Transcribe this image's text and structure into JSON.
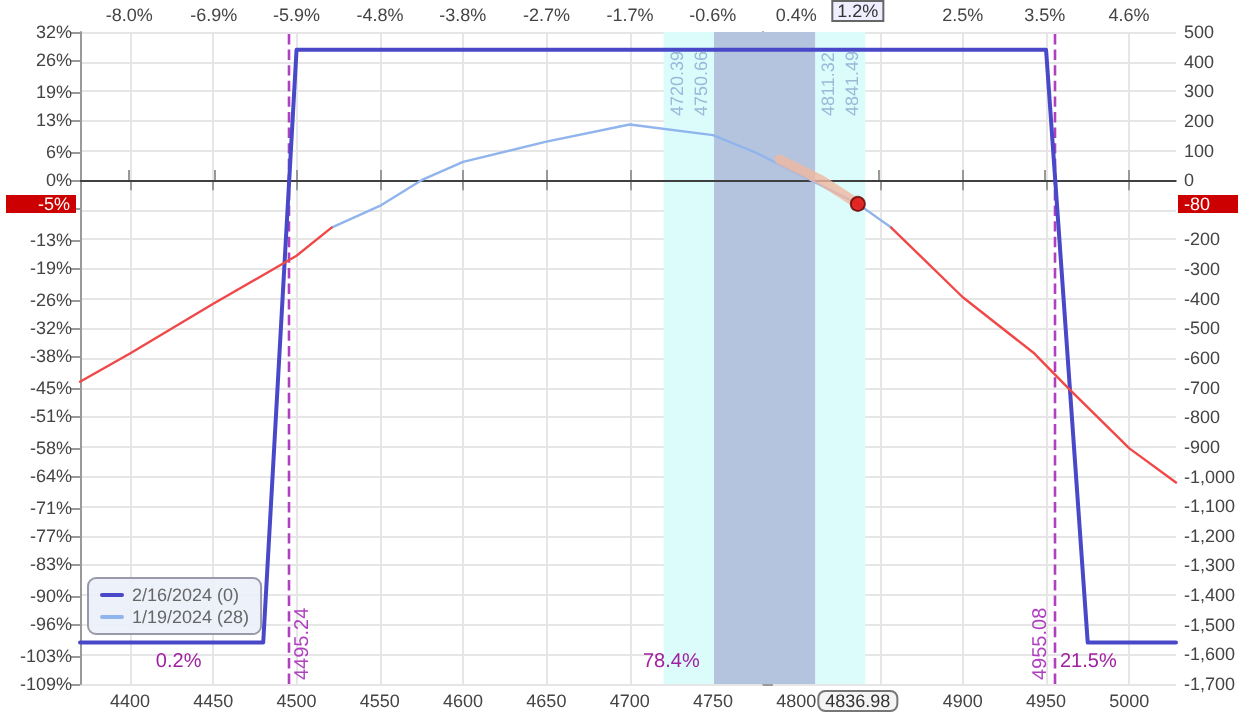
{
  "chart_data": {
    "type": "line",
    "xlim": [
      4370,
      5028
    ],
    "xticks": [
      4400,
      4450,
      4500,
      4550,
      4600,
      4650,
      4700,
      4750,
      4800,
      {
        "value": 4850,
        "label": null
      },
      4900,
      4950,
      5000
    ],
    "x2lim": [
      -8.58,
      5.19
    ],
    "x2ticks": [
      {
        "value": -7.96,
        "label": "-8.0%"
      },
      {
        "value": -6.9,
        "label": "-6.9%"
      },
      {
        "value": -5.86,
        "label": "-5.9%"
      },
      {
        "value": -4.81,
        "label": "-4.8%"
      },
      {
        "value": -3.77,
        "label": "-3.8%"
      },
      {
        "value": -2.72,
        "label": "-2.7%"
      },
      {
        "value": -1.67,
        "label": "-1.7%"
      },
      {
        "value": -0.63,
        "label": "-0.6%"
      },
      {
        "value": 0.42,
        "label": "0.4%"
      },
      {
        "value": 1.46,
        "label": null
      },
      {
        "value": 2.51,
        "label": "2.5%"
      },
      {
        "value": 3.54,
        "label": "3.5%"
      },
      {
        "value": 4.6,
        "label": "4.6%"
      }
    ],
    "ylim": [
      -1700,
      500
    ],
    "yticks": [
      {
        "value": -1700,
        "label": "-1,700"
      },
      {
        "value": -1600,
        "label": "-1,600"
      },
      {
        "value": -1500,
        "label": "-1,500"
      },
      {
        "value": -1400,
        "label": "-1,400"
      },
      {
        "value": -1300,
        "label": "-1,300"
      },
      {
        "value": -1200,
        "label": "-1,200"
      },
      {
        "value": -1100,
        "label": "-1,100"
      },
      {
        "value": -1000,
        "label": "-1,000"
      },
      -900,
      -800,
      -700,
      -600,
      -500,
      -400,
      -300,
      -200,
      {
        "value": -100,
        "label": null
      },
      0,
      100,
      200,
      300,
      400,
      500
    ],
    "y2lim": [
      -109,
      32
    ],
    "y2ticks": [
      {
        "value": 32,
        "label": "32%"
      },
      {
        "value": 26,
        "label": "26%"
      },
      {
        "value": 19,
        "label": "19%"
      },
      {
        "value": 13,
        "label": "13%"
      },
      {
        "value": 6,
        "label": "6%"
      },
      {
        "value": 0,
        "label": "0%"
      },
      {
        "value": -6,
        "label": null
      },
      {
        "value": -13,
        "label": "-13%"
      },
      {
        "value": -19,
        "label": "-19%"
      },
      {
        "value": -26,
        "label": "-26%"
      },
      {
        "value": -32,
        "label": "-32%"
      },
      {
        "value": -38,
        "label": "-38%"
      },
      {
        "value": -45,
        "label": "-45%"
      },
      {
        "value": -51,
        "label": "-51%"
      },
      {
        "value": -58,
        "label": "-58%"
      },
      {
        "value": -64,
        "label": "-64%"
      },
      {
        "value": -71,
        "label": "-71%"
      },
      {
        "value": -77,
        "label": "-77%"
      },
      {
        "value": -83,
        "label": "-83%"
      },
      {
        "value": -90,
        "label": "-90%"
      },
      {
        "value": -96,
        "label": "-96%"
      },
      {
        "value": -103,
        "label": "-103%"
      },
      {
        "value": -109,
        "label": "-109%"
      }
    ],
    "series": [
      {
        "name": "2/16/2024 (0)",
        "color": "#4848c8",
        "x": [
          4370,
          4480,
          4500,
          4950,
          4975,
          5028
        ],
        "values": [
          -1560,
          -1560,
          440,
          440,
          -1560,
          -1560
        ]
      },
      {
        "name": "1/19/2024 (28)",
        "color": "#90b4ec",
        "x": [
          4521,
          4550,
          4575,
          4600,
          4650,
          4700,
          4750,
          4775,
          4800,
          4836.98,
          4857
        ],
        "values": [
          -160,
          -87,
          0,
          62,
          130,
          188,
          152,
          95,
          25,
          -80,
          -160
        ]
      },
      {
        "color": "#f04848",
        "x": [
          4370,
          4400,
          4450,
          4500,
          4521
        ],
        "values": [
          -680,
          -585,
          -417,
          -255,
          -160
        ]
      },
      {
        "color": "#f04848",
        "x": [
          4857,
          4900,
          4943,
          4963,
          5000,
          5028
        ],
        "values": [
          -160,
          -395,
          -585,
          -700,
          -905,
          -1020
        ]
      },
      {
        "color": "#f0b8a0",
        "x": [
          4790,
          4815,
          4836.98
        ],
        "values": [
          70,
          0,
          -80
        ]
      },
      {
        "type": "scatter",
        "marker": "circle",
        "color": "#e00000",
        "x": [
          4836.98
        ],
        "values": [
          -80
        ]
      }
    ],
    "ref_lines": [
      {
        "axis": "x",
        "value": 4495.24,
        "label": "4495.24",
        "color": "#b040c0",
        "line_style": "dashed"
      },
      {
        "axis": "x",
        "value": 4955.08,
        "label": "4955.08",
        "color": "#b040c0",
        "line_style": "dashed"
      },
      {
        "axis": "y",
        "value": 0,
        "color": "#404040",
        "line_style": "solid"
      }
    ],
    "bands": [
      {
        "axis": "x",
        "from": 4720.39,
        "to": 4841.49,
        "color": "#dcfcfc"
      },
      {
        "axis": "x",
        "from": 4750.66,
        "to": 4811.32,
        "color": "#b4c4de"
      }
    ],
    "annotations": [
      {
        "text": "4720.39",
        "x": 4720.39
      },
      {
        "text": "4750.66",
        "x": 4750.66
      },
      {
        "text": "4811.32",
        "x": 4811.32
      },
      {
        "text": "4841.49",
        "x": 4841.49
      },
      "4836.98",
      "1.2%",
      "-80",
      "-5%",
      "0.2%",
      {
        "text": "78.4%",
        "x": 4725
      },
      "21.5%"
    ],
    "grid": true,
    "legend": "bottom left",
    "marker": "none",
    "line_style": "solid"
  }
}
